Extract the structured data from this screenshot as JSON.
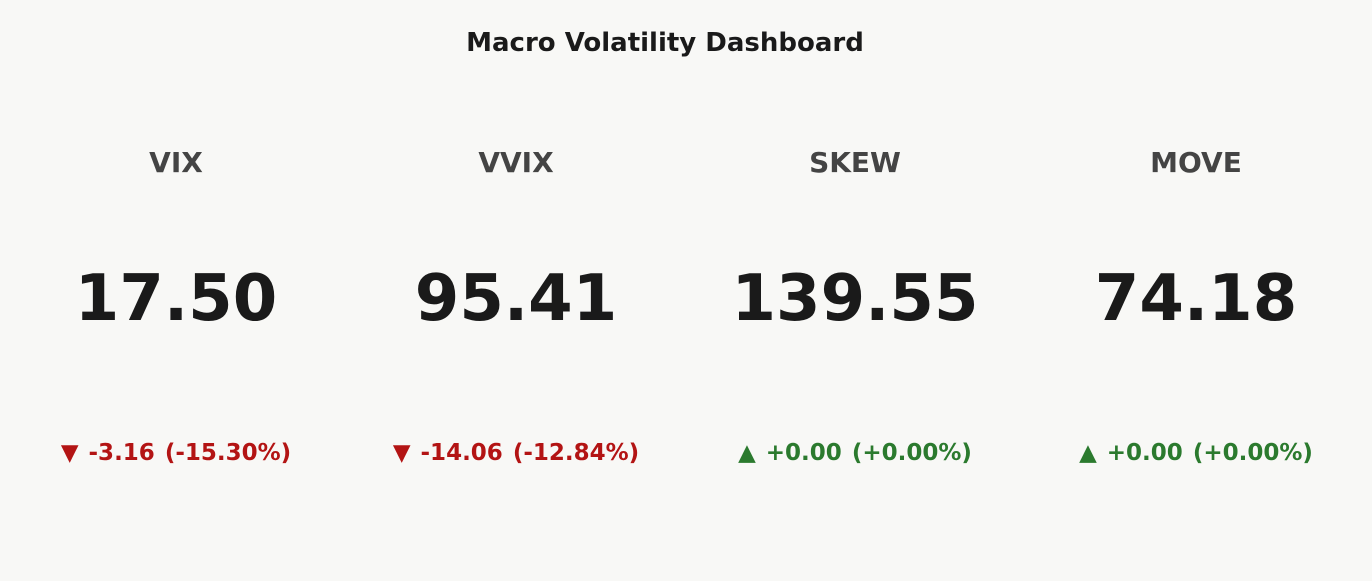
{
  "header": {
    "title": "Macro Volatility Dashboard"
  },
  "cards": [
    {
      "name": "VIX",
      "value": "17.50",
      "arrow": "▼",
      "change": "-3.16",
      "change_pct": "(-15.30%)",
      "color": "#b31414"
    },
    {
      "name": "VVIX",
      "value": "95.41",
      "arrow": "▼",
      "change": "-14.06",
      "change_pct": "(-12.84%)",
      "color": "#b31414"
    },
    {
      "name": "SKEW",
      "value": "139.55",
      "arrow": "▲",
      "change": "+0.00",
      "change_pct": "(+0.00%)",
      "color": "#2b7a2e"
    },
    {
      "name": "MOVE",
      "value": "74.18",
      "arrow": "▲",
      "change": "+0.00",
      "change_pct": "(+0.00%)",
      "color": "#2b7a2e"
    }
  ]
}
